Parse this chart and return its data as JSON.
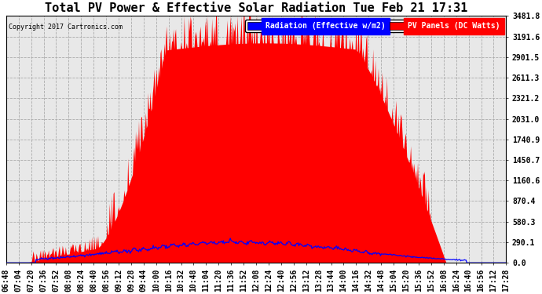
{
  "title": "Total PV Power & Effective Solar Radiation Tue Feb 21 17:31",
  "copyright": "Copyright 2017 Cartronics.com",
  "legend_radiation": "Radiation (Effective w/m2)",
  "legend_pv": "PV Panels (DC Watts)",
  "ylabel_values": [
    0.0,
    290.1,
    580.3,
    870.4,
    1160.6,
    1450.7,
    1740.9,
    2031.0,
    2321.2,
    2611.3,
    2901.5,
    3191.6,
    3481.8
  ],
  "ymax": 3481.8,
  "background_color": "#ffffff",
  "plot_bg_color": "#e8e8e8",
  "radiation_color": "#0000ff",
  "pv_color": "#ff0000",
  "grid_color": "#aaaaaa",
  "title_fontsize": 11,
  "tick_fontsize": 7,
  "n_points": 650,
  "x_tick_labels": [
    "06:48",
    "07:04",
    "07:20",
    "07:36",
    "07:52",
    "08:08",
    "08:24",
    "08:40",
    "08:56",
    "09:12",
    "09:28",
    "09:44",
    "10:00",
    "10:16",
    "10:32",
    "10:48",
    "11:04",
    "11:20",
    "11:36",
    "11:52",
    "12:08",
    "12:24",
    "12:40",
    "12:56",
    "13:12",
    "13:28",
    "13:44",
    "14:00",
    "14:16",
    "14:32",
    "14:48",
    "15:04",
    "15:20",
    "15:36",
    "15:52",
    "16:08",
    "16:24",
    "16:40",
    "16:56",
    "17:12",
    "17:28"
  ]
}
